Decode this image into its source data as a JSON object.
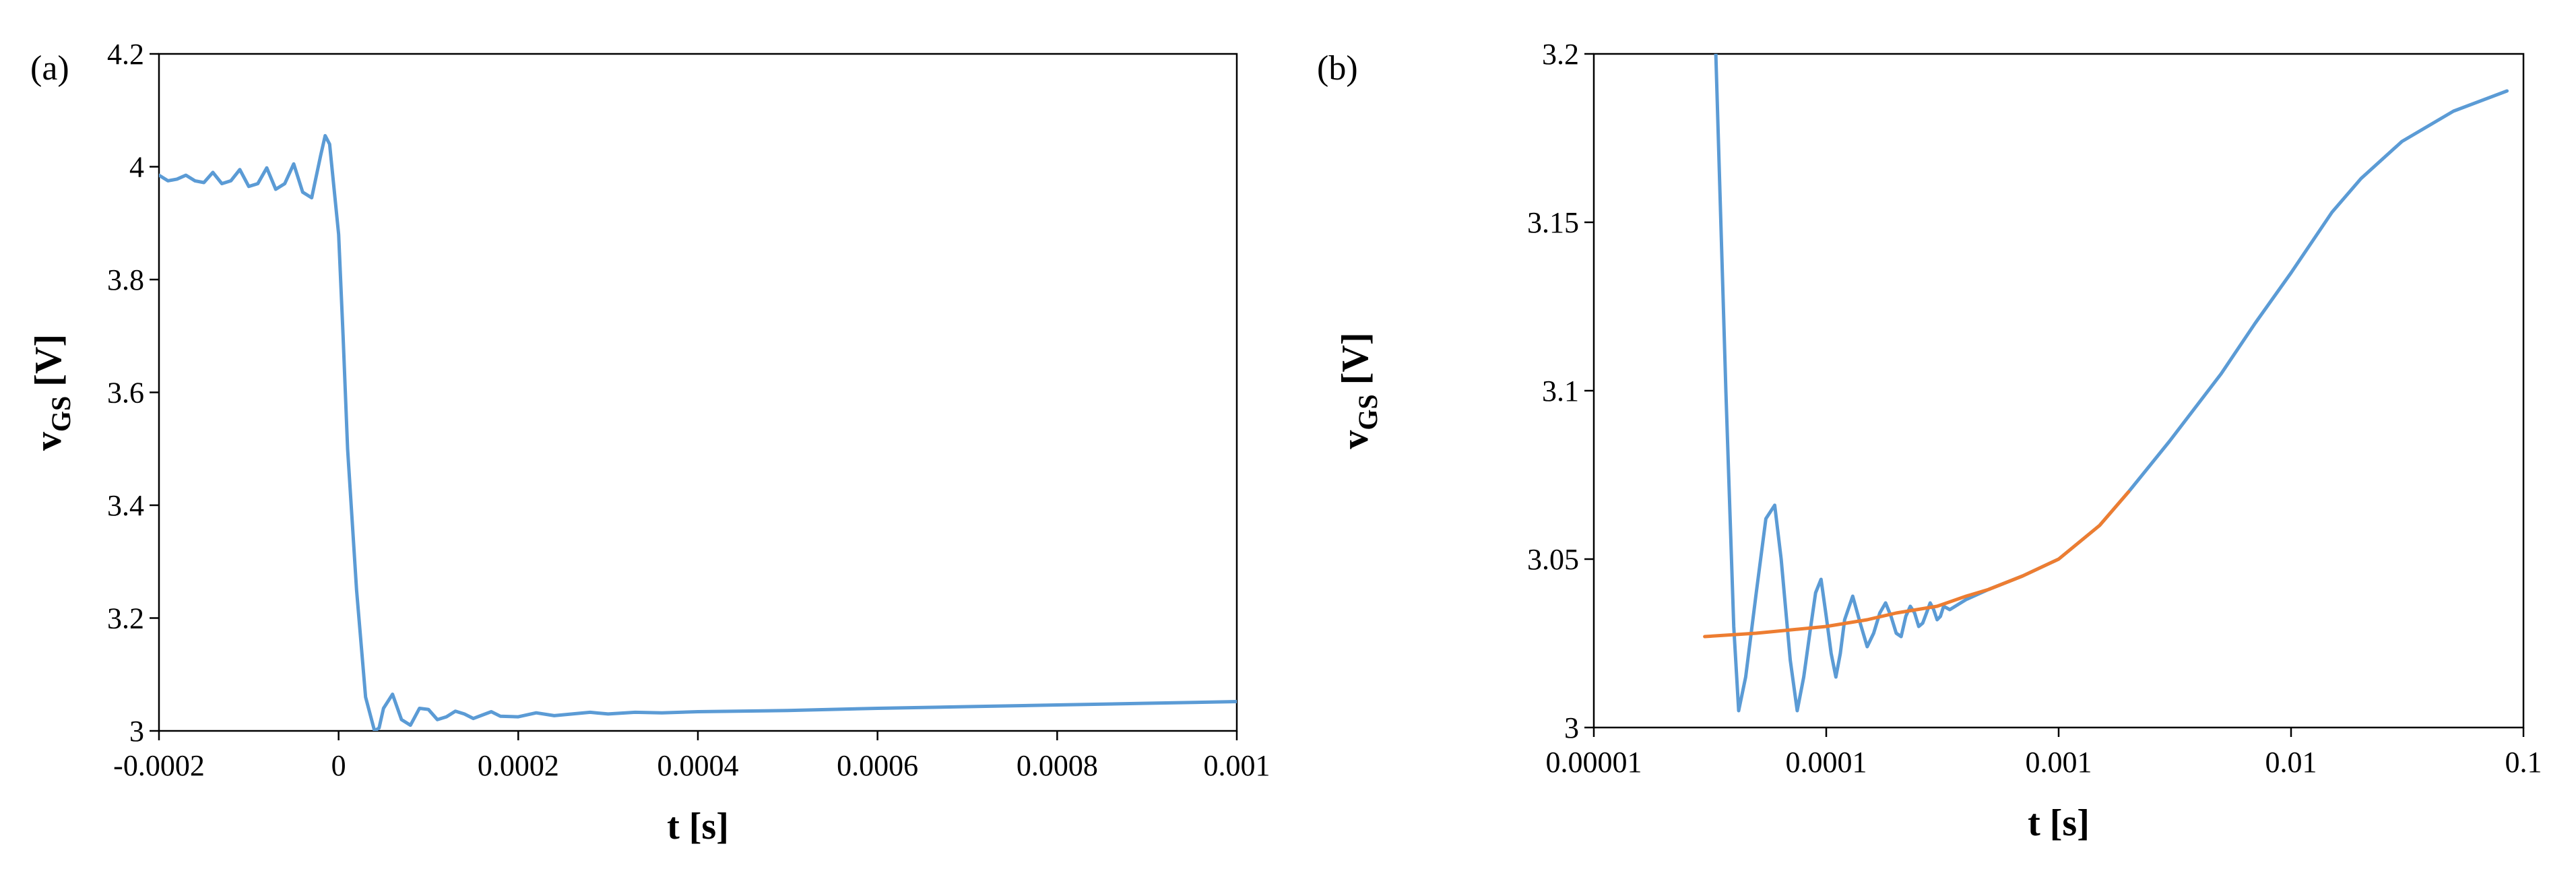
{
  "chart_data": [
    {
      "panel_label": "(a)",
      "type": "line",
      "xlabel": "t [s]",
      "ylabel_main": "v",
      "ylabel_sub": "GS",
      "ylabel_unit": "[V]",
      "xlim": [
        -0.0002,
        0.001
      ],
      "ylim": [
        3.0,
        4.2
      ],
      "xscale": "linear",
      "xticks": [
        -0.0002,
        0,
        0.0002,
        0.0004,
        0.0006,
        0.0008,
        0.001
      ],
      "xtick_labels": [
        "-0.0002",
        "0",
        "0.0002",
        "0.0004",
        "0.0006",
        "0.0008",
        "0.001"
      ],
      "yticks": [
        3.0,
        3.2,
        3.4,
        3.6,
        3.8,
        4.0,
        4.2
      ],
      "ytick_labels": [
        "3",
        "3.2",
        "3.4",
        "3.6",
        "3.8",
        "4",
        "4.2"
      ],
      "grid": false,
      "series": [
        {
          "color": "#5b9bd5",
          "x": [
            -0.0002,
            -0.00019,
            -0.00018,
            -0.00017,
            -0.00016,
            -0.00015,
            -0.00014,
            -0.00013,
            -0.00012,
            -0.00011,
            -0.0001,
            -9e-05,
            -8e-05,
            -7e-05,
            -6e-05,
            -5e-05,
            -4e-05,
            -3e-05,
            -2e-05,
            -1.5e-05,
            -1e-05,
            -5e-06,
            0,
            5e-06,
            1e-05,
            2e-05,
            3e-05,
            4e-05,
            4.5e-05,
            5e-05,
            6e-05,
            7e-05,
            8e-05,
            9e-05,
            0.0001,
            0.00011,
            0.00012,
            0.00013,
            0.00014,
            0.00015,
            0.00016,
            0.00017,
            0.00018,
            0.0002,
            0.00022,
            0.00024,
            0.00026,
            0.00028,
            0.0003,
            0.00033,
            0.00036,
            0.0004,
            0.0005,
            0.0006,
            0.0007,
            0.0008,
            0.0009,
            0.001
          ],
          "y": [
            3.985,
            3.975,
            3.978,
            3.985,
            3.975,
            3.972,
            3.99,
            3.97,
            3.975,
            3.995,
            3.965,
            3.97,
            3.998,
            3.96,
            3.97,
            4.005,
            3.955,
            3.945,
            4.02,
            4.055,
            4.04,
            3.96,
            3.88,
            3.7,
            3.5,
            3.25,
            3.06,
            3.0,
            3.005,
            3.04,
            3.065,
            3.02,
            3.01,
            3.04,
            3.038,
            3.02,
            3.025,
            3.035,
            3.03,
            3.022,
            3.028,
            3.034,
            3.026,
            3.025,
            3.032,
            3.027,
            3.03,
            3.033,
            3.03,
            3.033,
            3.032,
            3.034,
            3.036,
            3.04,
            3.043,
            3.046,
            3.049,
            3.052
          ]
        }
      ]
    },
    {
      "panel_label": "(b)",
      "type": "line",
      "xlabel": "t [s]",
      "ylabel_main": "v",
      "ylabel_sub": "GS",
      "ylabel_unit": "[V]",
      "xlim": [
        1e-05,
        0.1
      ],
      "ylim": [
        3.0,
        3.2
      ],
      "xscale": "log",
      "xticks": [
        1e-05,
        0.0001,
        0.001,
        0.01,
        0.1
      ],
      "xtick_labels": [
        "0.00001",
        "0.0001",
        "0.001",
        "0.01",
        "0.1"
      ],
      "yticks": [
        3.0,
        3.05,
        3.1,
        3.15,
        3.2
      ],
      "ytick_labels": [
        "3",
        "3.05",
        "3.1",
        "3.15",
        "3.2"
      ],
      "grid": false,
      "series": [
        {
          "color": "#5b9bd5",
          "x": [
            3.35e-05,
            3.7e-05,
            4e-05,
            4.2e-05,
            4.5e-05,
            5e-05,
            5.5e-05,
            6e-05,
            6.4e-05,
            7e-05,
            7.5e-05,
            8e-05,
            8.5e-05,
            9e-05,
            9.5e-05,
            0.0001,
            0.000105,
            0.00011,
            0.000115,
            0.00012,
            0.00013,
            0.00014,
            0.00015,
            0.00016,
            0.00017,
            0.00018,
            0.00019,
            0.0002,
            0.00021,
            0.00022,
            0.00023,
            0.00024,
            0.00025,
            0.00026,
            0.00027,
            0.00028,
            0.00029,
            0.0003,
            0.00031,
            0.00032,
            0.00034,
            0.0004,
            0.0005,
            0.0007,
            0.001,
            0.0015,
            0.002,
            0.003,
            0.005,
            0.007,
            0.01,
            0.015,
            0.02,
            0.03,
            0.05,
            0.085
          ],
          "y": [
            3.2,
            3.1,
            3.03,
            3.005,
            3.015,
            3.04,
            3.062,
            3.066,
            3.05,
            3.02,
            3.005,
            3.015,
            3.028,
            3.04,
            3.044,
            3.033,
            3.022,
            3.015,
            3.022,
            3.032,
            3.039,
            3.031,
            3.024,
            3.028,
            3.034,
            3.037,
            3.033,
            3.028,
            3.027,
            3.033,
            3.036,
            3.034,
            3.03,
            3.031,
            3.034,
            3.037,
            3.035,
            3.032,
            3.033,
            3.036,
            3.035,
            3.038,
            3.041,
            3.045,
            3.05,
            3.06,
            3.07,
            3.085,
            3.105,
            3.12,
            3.135,
            3.153,
            3.163,
            3.174,
            3.183,
            3.189
          ]
        },
        {
          "color": "#ed7d31",
          "x": [
            3e-05,
            5e-05,
            0.0001,
            0.00015,
            0.0002,
            0.0003,
            0.0004,
            0.0005,
            0.0007,
            0.001,
            0.0015,
            0.002
          ],
          "y": [
            3.027,
            3.028,
            3.03,
            3.032,
            3.034,
            3.036,
            3.039,
            3.041,
            3.045,
            3.05,
            3.06,
            3.07
          ]
        }
      ]
    }
  ]
}
